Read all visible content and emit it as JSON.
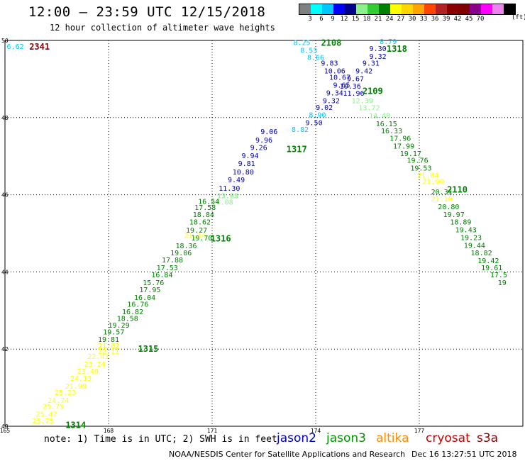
{
  "header": {
    "title": "12:00 – 23:59 UTC 12/15/2018",
    "subtitle": "12 hour collection of altimeter wave heights"
  },
  "legend": {
    "colors": [
      "#808080",
      "#00ffff",
      "#00c8ff",
      "#0000ff",
      "#00008b",
      "#8cf08c",
      "#32cd32",
      "#008000",
      "#ffff00",
      "#ffd700",
      "#ffa500",
      "#ff4500",
      "#b22222",
      "#8b0000",
      "#800000",
      "#8b008b",
      "#ff00ff",
      "#ee82ee",
      "#000000"
    ],
    "labels": [
      "3",
      "6",
      "9",
      "12",
      "15",
      "18",
      "21",
      "24",
      "27",
      "30",
      "33",
      "36",
      "39",
      "42",
      "45",
      "70"
    ],
    "unit": "(ft)"
  },
  "chart_data": {
    "type": "scatter",
    "xlim": [
      165,
      180
    ],
    "ylim": [
      40,
      50
    ],
    "xticks": [
      "165",
      "168",
      "171",
      "174",
      "177"
    ],
    "yticks": [
      "40",
      "42",
      "44",
      "46",
      "48",
      "50"
    ],
    "grid": true,
    "series": [
      {
        "name": "jason2 1317 lower",
        "color": "#0000b4",
        "points": [
          {
            "x": 171.5,
            "y": 46.18,
            "label": "11.30"
          },
          {
            "x": 171.7,
            "y": 46.4,
            "label": "9.49"
          },
          {
            "x": 171.9,
            "y": 46.6,
            "label": "10.80"
          },
          {
            "x": 172.0,
            "y": 46.82,
            "label": "9.81"
          },
          {
            "x": 172.1,
            "y": 47.02,
            "label": "9.94"
          },
          {
            "x": 172.35,
            "y": 47.23,
            "label": "9.26"
          },
          {
            "x": 172.5,
            "y": 47.43,
            "label": "9.96"
          },
          {
            "x": 172.65,
            "y": 47.65,
            "label": "9.06"
          }
        ]
      },
      {
        "name": "jason3 1317",
        "color": "#8cf08c",
        "points": [
          {
            "x": 171.3,
            "y": 45.82,
            "label": "14.08"
          },
          {
            "x": 171.45,
            "y": 45.98,
            "label": "13.22"
          },
          {
            "x": 171.45,
            "y": 45.98,
            "label": "12.65"
          }
        ]
      },
      {
        "name": "altika 1316",
        "color": "#008000",
        "points": [
          {
            "x": 170.7,
            "y": 44.89,
            "label": "19.70"
          },
          {
            "x": 170.55,
            "y": 45.09,
            "label": "19.27"
          },
          {
            "x": 170.65,
            "y": 45.3,
            "label": "18.62"
          },
          {
            "x": 170.75,
            "y": 45.5,
            "label": "18.84"
          },
          {
            "x": 170.8,
            "y": 45.68,
            "label": "17.58"
          },
          {
            "x": 170.9,
            "y": 45.84,
            "label": "16.54"
          },
          {
            "x": 170.25,
            "y": 44.69,
            "label": "18.36"
          },
          {
            "x": 170.1,
            "y": 44.5,
            "label": "19.06"
          },
          {
            "x": 169.85,
            "y": 44.32,
            "label": "17.88"
          },
          {
            "x": 169.7,
            "y": 44.12,
            "label": "17.53"
          },
          {
            "x": 169.55,
            "y": 43.93,
            "label": "16.84"
          },
          {
            "x": 169.3,
            "y": 43.73,
            "label": "15.76"
          },
          {
            "x": 169.2,
            "y": 43.55,
            "label": "17.95"
          },
          {
            "x": 169.05,
            "y": 43.35,
            "label": "16.04"
          },
          {
            "x": 168.85,
            "y": 43.17,
            "label": "16.76"
          },
          {
            "x": 168.7,
            "y": 42.98,
            "label": "16.82"
          },
          {
            "x": 168.55,
            "y": 42.8,
            "label": "18.58"
          },
          {
            "x": 168.3,
            "y": 42.63,
            "label": "19.29"
          },
          {
            "x": 168.15,
            "y": 42.45,
            "label": "19.57"
          },
          {
            "x": 168.0,
            "y": 42.26,
            "label": "19.81"
          }
        ]
      },
      {
        "name": "altika 1316 high",
        "color": "#ffff00",
        "points": [
          {
            "x": 170.5,
            "y": 44.95,
            "label": "21.34"
          },
          {
            "x": 168.0,
            "y": 42.1,
            "label": "21.82"
          },
          {
            "x": 168.0,
            "y": 41.95,
            "label": "22.11"
          },
          {
            "x": 167.7,
            "y": 41.82,
            "label": "22.43"
          },
          {
            "x": 167.6,
            "y": 41.62,
            "label": "23.24"
          },
          {
            "x": 167.4,
            "y": 41.43,
            "label": "23.40"
          },
          {
            "x": 167.2,
            "y": 41.25,
            "label": "24.13"
          },
          {
            "x": 167.05,
            "y": 41.05,
            "label": "21.98"
          },
          {
            "x": 166.75,
            "y": 40.88,
            "label": "25.23"
          },
          {
            "x": 166.55,
            "y": 40.68,
            "label": "24.74"
          },
          {
            "x": 166.4,
            "y": 40.52,
            "label": "25.75"
          },
          {
            "x": 166.2,
            "y": 40.32,
            "label": "25.47"
          },
          {
            "x": 166.1,
            "y": 40.15,
            "label": "25.75"
          }
        ]
      },
      {
        "name": "jason2 2108",
        "color": "#0000b4",
        "points": [
          {
            "x": 174.4,
            "y": 49.42,
            "label": "9.83"
          },
          {
            "x": 174.55,
            "y": 49.22,
            "label": "10.06"
          },
          {
            "x": 174.7,
            "y": 49.05,
            "label": "10.67"
          },
          {
            "x": 174.75,
            "y": 48.85,
            "label": "9.65"
          },
          {
            "x": 174.55,
            "y": 48.65,
            "label": "9.34"
          },
          {
            "x": 174.45,
            "y": 48.45,
            "label": "9.32"
          },
          {
            "x": 174.25,
            "y": 48.27,
            "label": "9.02"
          },
          {
            "x": 173.95,
            "y": 47.88,
            "label": "9.50"
          }
        ]
      },
      {
        "name": "cryosat 2108",
        "color": "#00c8ff",
        "points": [
          {
            "x": 173.6,
            "y": 49.95,
            "label": "8.25"
          },
          {
            "x": 173.8,
            "y": 49.75,
            "label": "8.53"
          },
          {
            "x": 174.0,
            "y": 49.57,
            "label": "8.66"
          },
          {
            "x": 174.05,
            "y": 48.08,
            "label": "8.90"
          },
          {
            "x": 173.55,
            "y": 47.7,
            "label": "8.82"
          }
        ]
      },
      {
        "name": "jason2 1318",
        "color": "#0000b4",
        "points": [
          {
            "x": 175.8,
            "y": 49.8,
            "label": "9.30"
          },
          {
            "x": 175.8,
            "y": 49.6,
            "label": "9.32"
          },
          {
            "x": 175.6,
            "y": 49.42,
            "label": "9.31"
          },
          {
            "x": 175.4,
            "y": 49.22,
            "label": "9.42"
          },
          {
            "x": 175.15,
            "y": 49.02,
            "label": "9.67"
          },
          {
            "x": 175.0,
            "y": 48.82,
            "label": "10.36"
          },
          {
            "x": 175.1,
            "y": 48.64,
            "label": "11.96"
          }
        ]
      },
      {
        "name": "cryosat 1318",
        "color": "#00c8ff",
        "points": [
          {
            "x": 176.1,
            "y": 49.98,
            "label": "8.79"
          }
        ]
      },
      {
        "name": "jason3 2109",
        "color": "#8cf08c",
        "points": [
          {
            "x": 175.35,
            "y": 48.45,
            "label": "12.39"
          },
          {
            "x": 175.55,
            "y": 48.26,
            "label": "13.72"
          },
          {
            "x": 175.85,
            "y": 48.06,
            "label": "14.48"
          }
        ]
      },
      {
        "name": "altika 2110",
        "color": "#008000",
        "points": [
          {
            "x": 176.05,
            "y": 47.85,
            "label": "16.15"
          },
          {
            "x": 176.2,
            "y": 47.67,
            "label": "16.33"
          },
          {
            "x": 176.45,
            "y": 47.47,
            "label": "17.96"
          },
          {
            "x": 176.55,
            "y": 47.27,
            "label": "17.99"
          },
          {
            "x": 176.75,
            "y": 47.08,
            "label": "19.17"
          },
          {
            "x": 176.95,
            "y": 46.9,
            "label": "19.76"
          },
          {
            "x": 177.05,
            "y": 46.7,
            "label": "19.53"
          },
          {
            "x": 177.65,
            "y": 46.08,
            "label": "20.31"
          },
          {
            "x": 177.85,
            "y": 45.7,
            "label": "20.80"
          },
          {
            "x": 178.0,
            "y": 45.5,
            "label": "19.97"
          },
          {
            "x": 178.2,
            "y": 45.3,
            "label": "18.89"
          },
          {
            "x": 178.35,
            "y": 45.1,
            "label": "19.43"
          },
          {
            "x": 178.5,
            "y": 44.9,
            "label": "19.23"
          },
          {
            "x": 178.6,
            "y": 44.7,
            "label": "19.44"
          },
          {
            "x": 178.8,
            "y": 44.5,
            "label": "18.82"
          },
          {
            "x": 179.0,
            "y": 44.3,
            "label": "19.42"
          },
          {
            "x": 179.1,
            "y": 44.12,
            "label": "19.61"
          },
          {
            "x": 179.3,
            "y": 43.93,
            "label": "17.5"
          },
          {
            "x": 179.4,
            "y": 43.73,
            "label": "19"
          }
        ]
      },
      {
        "name": "altika 2110 high",
        "color": "#ffff00",
        "points": [
          {
            "x": 177.25,
            "y": 46.52,
            "label": "21.84"
          },
          {
            "x": 177.4,
            "y": 46.35,
            "label": "21.90"
          },
          {
            "x": 177.65,
            "y": 45.9,
            "label": "21.10"
          }
        ]
      },
      {
        "name": "cryosat 2341",
        "color": "#00c8ff",
        "points": [
          {
            "x": 165.3,
            "y": 49.85,
            "label": "6.62"
          }
        ]
      }
    ],
    "track_labels": [
      {
        "text": "2341",
        "x": 166.0,
        "y": 49.85,
        "color": "#8b0000"
      },
      {
        "text": "2108",
        "x": 174.45,
        "y": 49.95,
        "color": "#008000"
      },
      {
        "text": "1318",
        "x": 176.35,
        "y": 49.8,
        "color": "#008000"
      },
      {
        "text": "2109",
        "x": 175.65,
        "y": 48.7,
        "color": "#008000"
      },
      {
        "text": "1317",
        "x": 173.45,
        "y": 47.2,
        "color": "#008000"
      },
      {
        "text": "2110",
        "x": 178.1,
        "y": 46.15,
        "color": "#008000"
      },
      {
        "text": "1316",
        "x": 171.25,
        "y": 44.88,
        "color": "#008000"
      },
      {
        "text": "1315",
        "x": 169.15,
        "y": 42.02,
        "color": "#008000"
      },
      {
        "text": "1314",
        "x": 167.05,
        "y": 40.05,
        "color": "#008000"
      }
    ]
  },
  "footer": {
    "note": "note: 1) Time is in UTC; 2) SWH is in feet",
    "satellites": [
      {
        "name": "jason2",
        "color": "#0000c8"
      },
      {
        "name": "jason3",
        "color": "#009600"
      },
      {
        "name": "altika",
        "color": "#ff8c00"
      },
      {
        "name": "cryosat",
        "color": "#c80000"
      },
      {
        "name": "s3a",
        "color": "#8b0000"
      }
    ],
    "credit_left": "NOAA/NESDIS Center for Satellite Applications and Research",
    "credit_right": "Dec 16 13:27:51 UTC 2018"
  }
}
